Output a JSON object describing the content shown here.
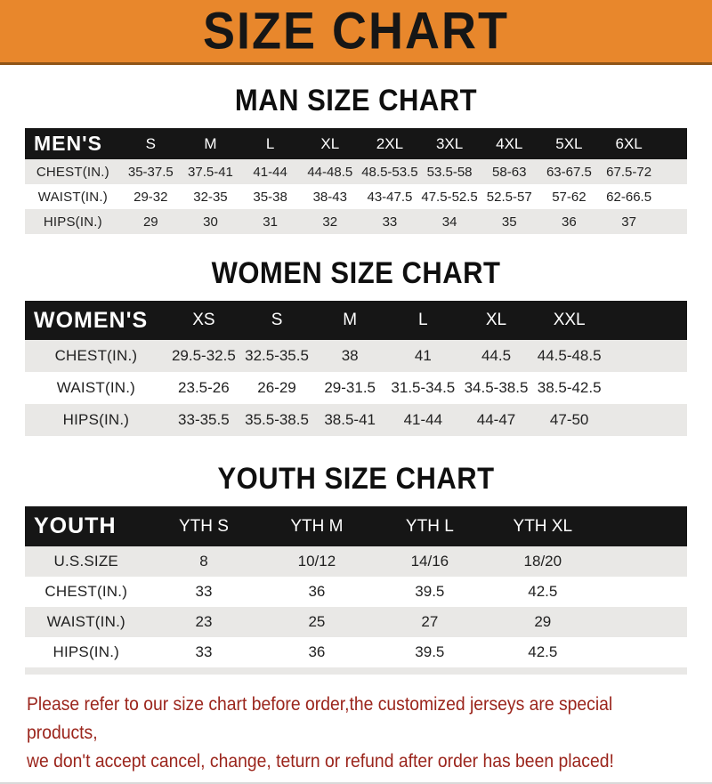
{
  "banner": {
    "title": "SIZE CHART",
    "bg_color": "#e8872c",
    "text_color": "#161616"
  },
  "sections": [
    {
      "title": "MAN SIZE CHART",
      "header_label": "MEN'S",
      "columns": [
        "S",
        "M",
        "L",
        "XL",
        "2XL",
        "3XL",
        "4XL",
        "5XL",
        "6XL"
      ],
      "rows": [
        {
          "label": "CHEST(IN.)",
          "values": [
            "35-37.5",
            "37.5-41",
            "41-44",
            "44-48.5",
            "48.5-53.5",
            "53.5-58",
            "58-63",
            "63-67.5",
            "67.5-72"
          ]
        },
        {
          "label": "WAIST(IN.)",
          "values": [
            "29-32",
            "32-35",
            "35-38",
            "38-43",
            "43-47.5",
            "47.5-52.5",
            "52.5-57",
            "57-62",
            "62-66.5"
          ]
        },
        {
          "label": "HIPS(IN.)",
          "values": [
            "29",
            "30",
            "31",
            "32",
            "33",
            "34",
            "35",
            "36",
            "37"
          ]
        }
      ]
    },
    {
      "title": "WOMEN SIZE CHART",
      "header_label": "WOMEN'S",
      "columns": [
        "XS",
        "S",
        "M",
        "L",
        "XL",
        "XXL"
      ],
      "rows": [
        {
          "label": "CHEST(IN.)",
          "values": [
            "29.5-32.5",
            "32.5-35.5",
            "38",
            "41",
            "44.5",
            "44.5-48.5"
          ]
        },
        {
          "label": "WAIST(IN.)",
          "values": [
            "23.5-26",
            "26-29",
            "29-31.5",
            "31.5-34.5",
            "34.5-38.5",
            "38.5-42.5"
          ]
        },
        {
          "label": "HIPS(IN.)",
          "values": [
            "33-35.5",
            "35.5-38.5",
            "38.5-41",
            "41-44",
            "44-47",
            "47-50"
          ]
        }
      ]
    },
    {
      "title": "YOUTH SIZE CHART",
      "header_label": "YOUTH",
      "columns": [
        "YTH S",
        "YTH M",
        "YTH L",
        "YTH XL"
      ],
      "rows": [
        {
          "label": "U.S.SIZE",
          "values": [
            "8",
            "10/12",
            "14/16",
            "18/20"
          ]
        },
        {
          "label": "CHEST(IN.)",
          "values": [
            "33",
            "36",
            "39.5",
            "42.5"
          ]
        },
        {
          "label": "WAIST(IN.)",
          "values": [
            "23",
            "25",
            "27",
            "29"
          ]
        },
        {
          "label": "HIPS(IN.)",
          "values": [
            "33",
            "36",
            "39.5",
            "42.5"
          ]
        }
      ]
    }
  ],
  "footnote": {
    "line1": "Please refer to our size chart before order,the customized jerseys are special products,",
    "line2": "we don't accept cancel, change, teturn or refund after order has been placed!",
    "color": "#9b251c"
  },
  "colors": {
    "banner_orange": "#e8872c",
    "banner_border": "#8f5416",
    "header_black": "#161616",
    "row_stripe_gray": "#e9e8e6",
    "note_red": "#9b251c"
  }
}
